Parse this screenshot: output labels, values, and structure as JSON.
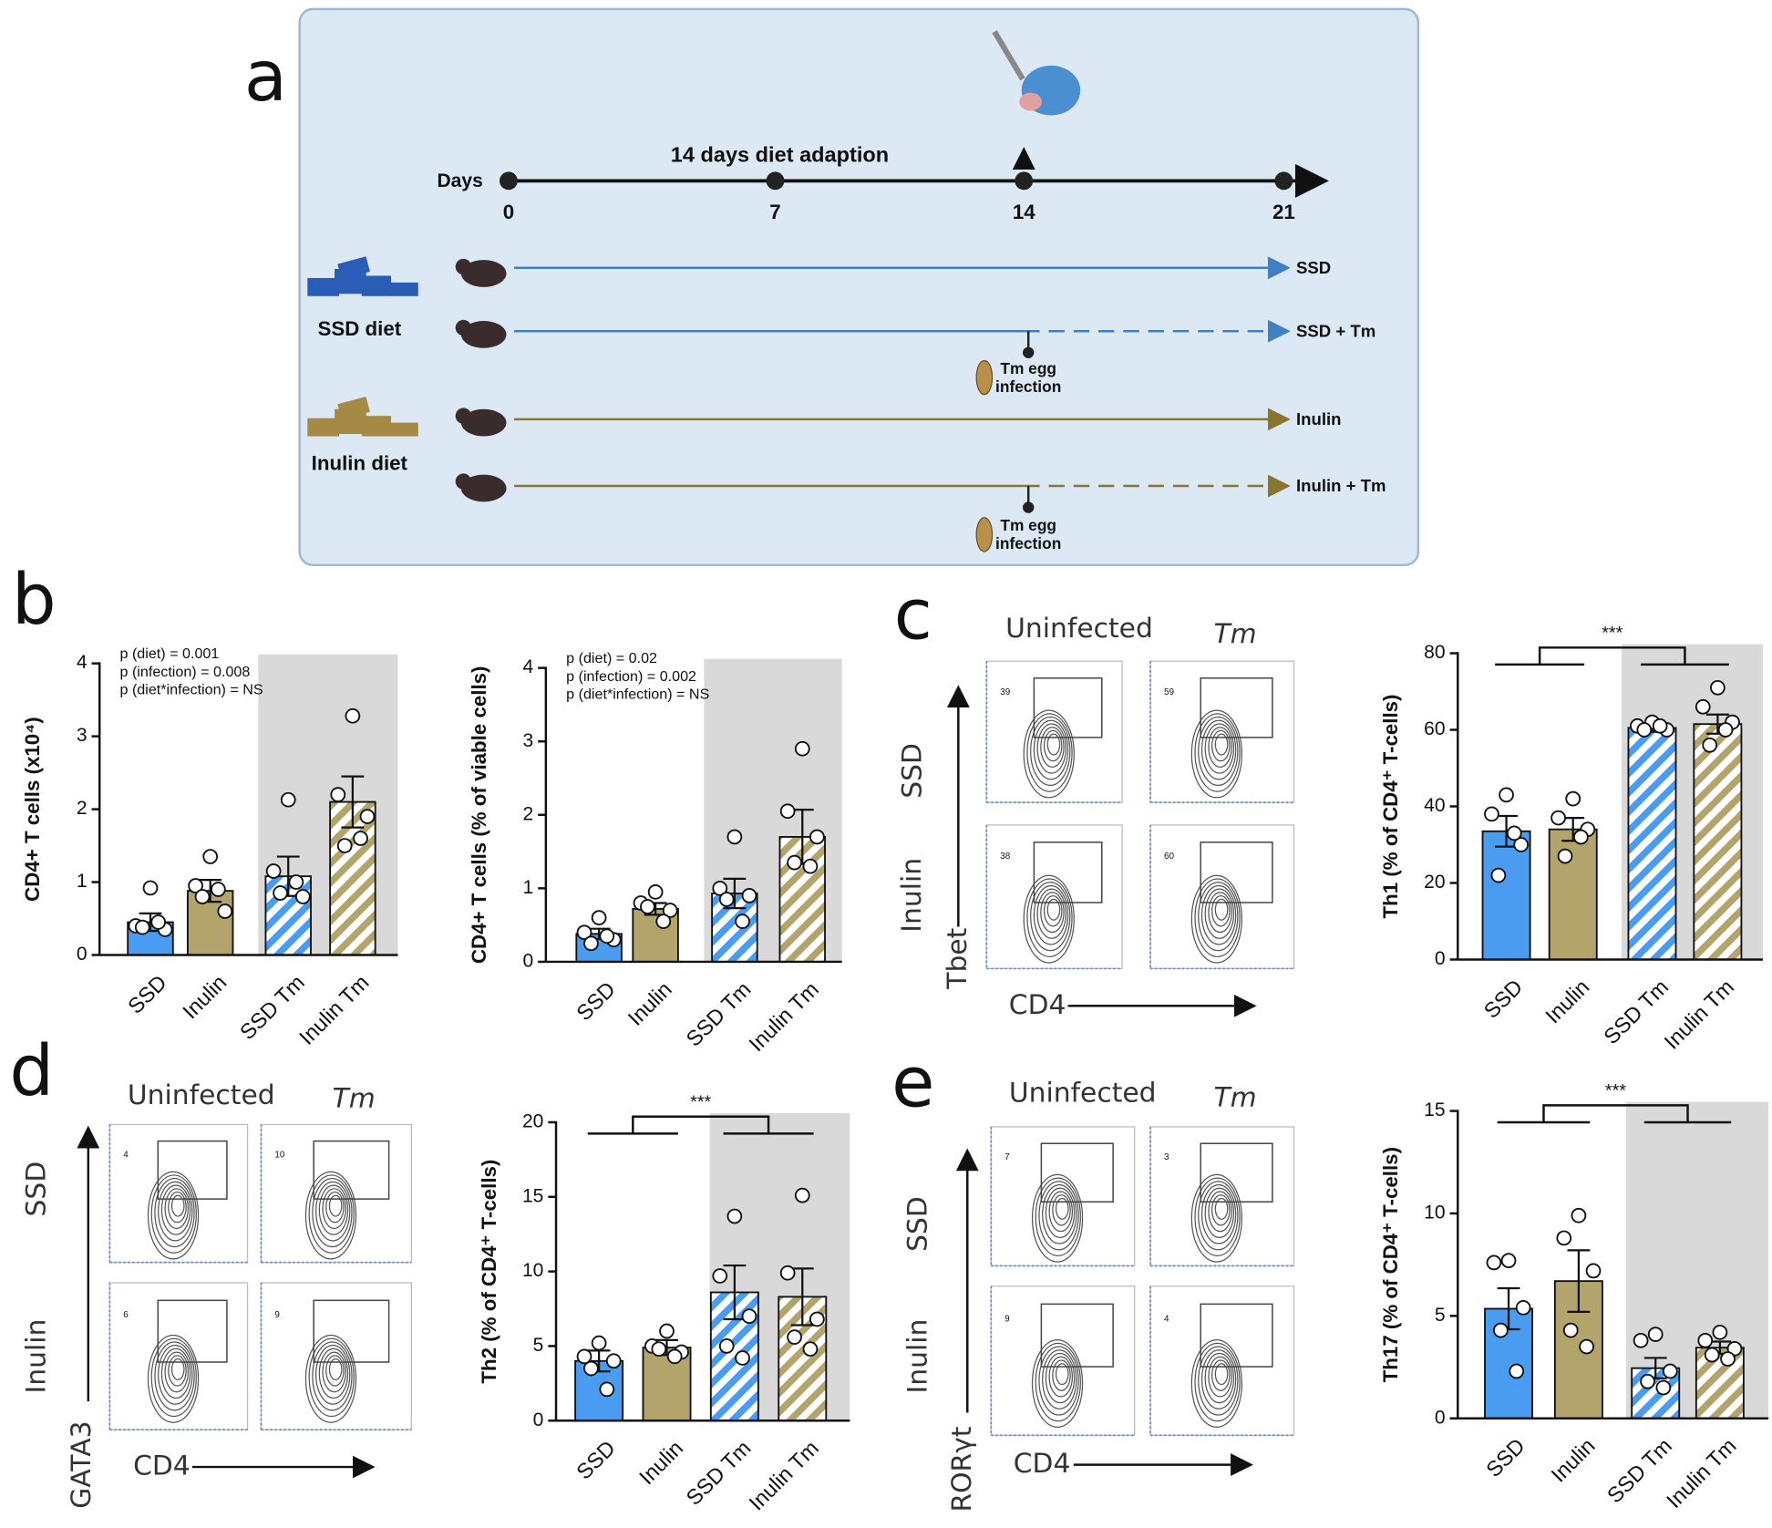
{
  "panel_labels": [
    "a",
    "b",
    "c",
    "d",
    "e"
  ],
  "timeline": {
    "axis_label": "Days",
    "phase": "14 days diet adaption",
    "days": [
      "0",
      "7",
      "14",
      "21"
    ],
    "groups": [
      {
        "diet": "SSD diet",
        "arms": [
          "SSD",
          "SSD + Tm"
        ]
      },
      {
        "diet": "Inulin diet",
        "arms": [
          "Inulin",
          "Inulin + Tm"
        ]
      }
    ],
    "infection": [
      "Tm egg",
      "infection"
    ]
  },
  "chart_data": [
    {
      "type": "bar",
      "ylabel": "CD4+ T cells (x10⁴)",
      "categories": [
        "SSD",
        "Inulin",
        "SSD Tm",
        "Inulin Tm"
      ],
      "values": [
        0.45,
        0.88,
        1.08,
        2.1
      ],
      "errors": [
        0.12,
        0.15,
        0.27,
        0.35
      ],
      "points": [
        [
          0.92,
          0.4,
          0.35,
          0.38,
          0.45
        ],
        [
          1.35,
          0.95,
          0.6,
          0.8,
          0.9
        ],
        [
          2.13,
          1.15,
          0.8,
          0.85,
          1.0
        ],
        [
          3.28,
          2.2,
          1.9,
          1.5,
          1.6
        ]
      ],
      "colors": [
        "#4a9cf0",
        "#b3a46b",
        "#4a9cf0",
        "#b3a46b"
      ],
      "hatched": [
        false,
        false,
        true,
        true
      ],
      "ylim": [
        0,
        4
      ],
      "yticks": [
        0,
        1,
        2,
        3,
        4
      ],
      "annotations": [
        "p (diet) = 0.001",
        "p (infection) = 0.008",
        "p (diet*infection) = NS"
      ]
    },
    {
      "type": "bar",
      "ylabel": "CD4+ T cells (% of viable cells)",
      "categories": [
        "SSD",
        "Inulin",
        "SSD Tm",
        "Inulin Tm"
      ],
      "values": [
        0.38,
        0.72,
        0.93,
        1.7
      ],
      "errors": [
        0.07,
        0.08,
        0.2,
        0.37
      ],
      "points": [
        [
          0.6,
          0.4,
          0.3,
          0.25,
          0.35
        ],
        [
          0.95,
          0.8,
          0.7,
          0.75,
          0.55
        ],
        [
          1.7,
          1.0,
          0.9,
          0.85,
          0.55
        ],
        [
          2.9,
          2.05,
          1.7,
          1.35,
          1.3
        ]
      ],
      "colors": [
        "#4a9cf0",
        "#b3a46b",
        "#4a9cf0",
        "#b3a46b"
      ],
      "hatched": [
        false,
        false,
        true,
        true
      ],
      "ylim": [
        0,
        4
      ],
      "yticks": [
        0,
        1,
        2,
        3,
        4
      ],
      "annotations": [
        "p (diet) = 0.02",
        "p (infection) = 0.002",
        "p (diet*infection) = NS"
      ]
    },
    {
      "type": "bar",
      "ylabel": "Th1 (% of CD4⁺ T-cells)",
      "categories": [
        "SSD",
        "Inulin",
        "SSD Tm",
        "Inulin Tm"
      ],
      "values": [
        33.5,
        34,
        60.5,
        61.5
      ],
      "errors": [
        4,
        3,
        1,
        2.5
      ],
      "points": [
        [
          43,
          38,
          30,
          22,
          33
        ],
        [
          42,
          37,
          34,
          27,
          32
        ],
        [
          62,
          61,
          60,
          60,
          61
        ],
        [
          71,
          66,
          62,
          56,
          60
        ]
      ],
      "colors": [
        "#4a9cf0",
        "#b3a46b",
        "#4a9cf0",
        "#b3a46b"
      ],
      "hatched": [
        false,
        false,
        true,
        true
      ],
      "ylim": [
        0,
        80
      ],
      "yticks": [
        0,
        20,
        40,
        60,
        80
      ],
      "significance": "***"
    },
    {
      "type": "bar",
      "ylabel": "Th2 (% of CD4⁺ T-cells)",
      "categories": [
        "SSD",
        "Inulin",
        "SSD Tm",
        "Inulin Tm"
      ],
      "values": [
        4,
        4.9,
        8.6,
        8.3
      ],
      "errors": [
        0.7,
        0.5,
        1.8,
        1.9
      ],
      "points": [
        [
          5.2,
          4.3,
          4,
          3.5,
          2.1
        ],
        [
          6,
          5,
          4.6,
          4.8,
          4.3
        ],
        [
          13.7,
          9.7,
          7,
          5,
          4.2
        ],
        [
          15.1,
          9.9,
          6.8,
          5.6,
          4.8
        ]
      ],
      "colors": [
        "#4a9cf0",
        "#b3a46b",
        "#4a9cf0",
        "#b3a46b"
      ],
      "hatched": [
        false,
        false,
        true,
        true
      ],
      "ylim": [
        0,
        20
      ],
      "yticks": [
        0,
        5,
        10,
        15,
        20
      ],
      "significance": "***"
    },
    {
      "type": "bar",
      "ylabel": "Th17 (% of CD4⁺ T-cells)",
      "categories": [
        "SSD",
        "Inulin",
        "SSD Tm",
        "Inulin Tm"
      ],
      "values": [
        5.35,
        6.7,
        2.45,
        3.45
      ],
      "errors": [
        1,
        1.5,
        0.5,
        0.3
      ],
      "points": [
        [
          7.7,
          7.6,
          5.4,
          4.3,
          2.3
        ],
        [
          9.9,
          8.8,
          7.2,
          4.3,
          3.5
        ],
        [
          4.1,
          3.8,
          2.3,
          1.8,
          1.5
        ],
        [
          4.2,
          3.8,
          3.4,
          3.1,
          2.9
        ]
      ],
      "colors": [
        "#4a9cf0",
        "#b3a46b",
        "#4a9cf0",
        "#b3a46b"
      ],
      "hatched": [
        false,
        false,
        true,
        true
      ],
      "ylim": [
        0,
        15
      ],
      "yticks": [
        0,
        5,
        10,
        15
      ],
      "significance": "***"
    }
  ],
  "flow_panels": [
    {
      "columns": [
        "Uninfected",
        "Tm"
      ],
      "rows": [
        "SSD",
        "Inulin"
      ],
      "y_marker": "Tbet",
      "x_marker": "CD4",
      "gates": [
        "39",
        "59",
        "38",
        "60"
      ]
    },
    {
      "columns": [
        "Uninfected",
        "Tm"
      ],
      "rows": [
        "SSD",
        "Inulin"
      ],
      "y_marker": "GATA3",
      "x_marker": "CD4",
      "gates": [
        "4",
        "10",
        "6",
        "9"
      ]
    },
    {
      "columns": [
        "Uninfected",
        "Tm"
      ],
      "rows": [
        "SSD",
        "Inulin"
      ],
      "y_marker": "RORγt",
      "x_marker": "CD4",
      "gates": [
        "7",
        "3",
        "9",
        "4"
      ]
    }
  ]
}
